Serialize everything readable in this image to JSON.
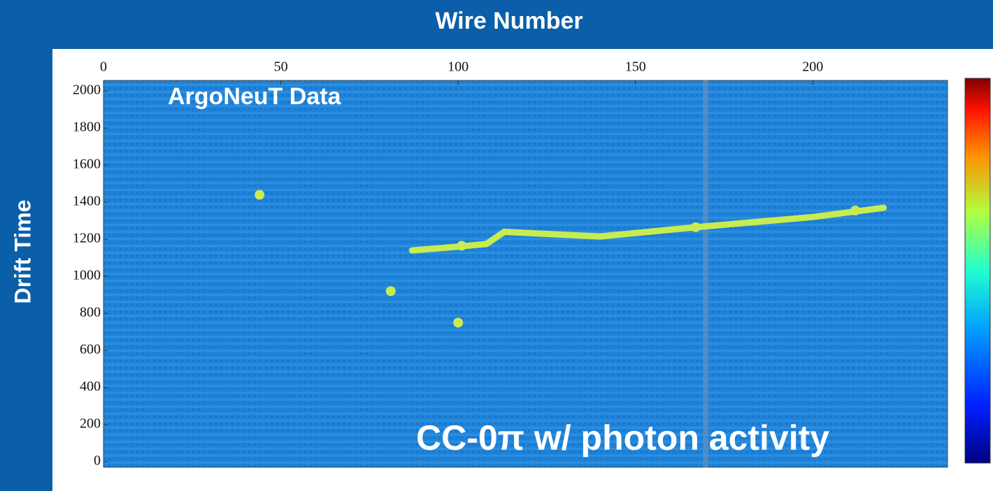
{
  "chart_data": {
    "type": "event-display",
    "title": "Wire Number",
    "y_label": "Drift Time",
    "annotations": [
      "ArgoNeuT Data",
      "CC-0π w/ photon activity"
    ],
    "xlim": [
      0,
      238
    ],
    "xticks": [
      0,
      50,
      100,
      150,
      200
    ],
    "ylim": [
      -30,
      2057
    ],
    "yticks": [
      0,
      200,
      400,
      600,
      800,
      1000,
      1200,
      1400,
      1600,
      1800,
      2000
    ],
    "track_color": "#c8ec50",
    "tracks": [
      {
        "x": [
          87,
          100,
          108,
          113,
          140,
          167,
          200,
          220
        ],
        "y": [
          1140,
          1160,
          1175,
          1240,
          1215,
          1265,
          1320,
          1370
        ]
      }
    ],
    "hits": {
      "x": [
        44,
        81,
        100,
        167,
        212,
        101
      ],
      "y": [
        1440,
        920,
        750,
        1265,
        1355,
        1165
      ]
    }
  }
}
